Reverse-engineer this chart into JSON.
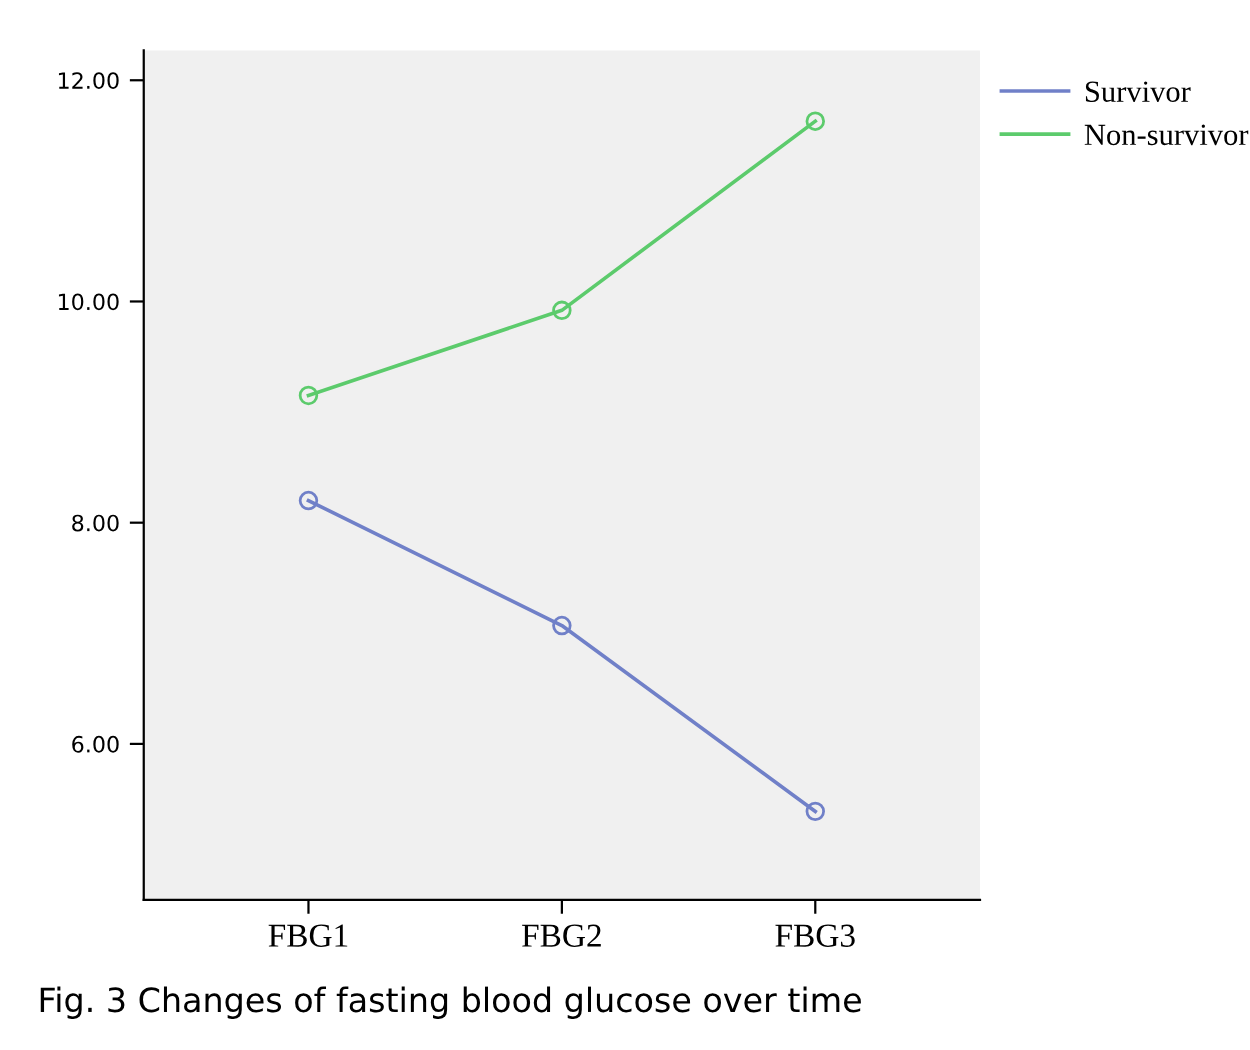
{
  "chart_data": {
    "type": "line",
    "categories": [
      "FBG1",
      "FBG2",
      "FBG3"
    ],
    "series": [
      {
        "name": "Survivor",
        "color": "#7080c8",
        "values": [
          8.2,
          7.07,
          5.39
        ]
      },
      {
        "name": "Non-survivor",
        "color": "#5ccb6c",
        "values": [
          9.15,
          9.92,
          11.63
        ]
      }
    ],
    "ylim": [
      4.59,
      12.27
    ],
    "yticks": [
      {
        "value": 6,
        "label": "6.00"
      },
      {
        "value": 8,
        "label": "8.00"
      },
      {
        "value": 10,
        "label": "10.00"
      },
      {
        "value": 12,
        "label": "12.00"
      }
    ],
    "marker": "circle",
    "line_style": "solid",
    "grid": false,
    "legend": "top right",
    "annotations": [
      "Fig. 3 Changes of fasting blood glucose over time"
    ]
  }
}
